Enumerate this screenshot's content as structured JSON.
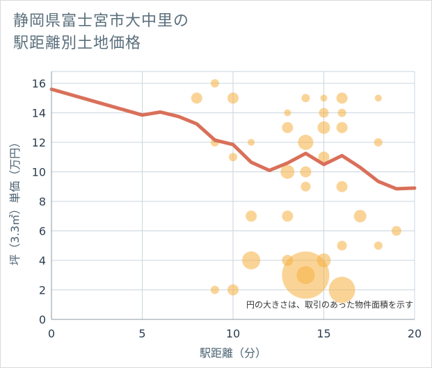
{
  "chart_data": {
    "type": "scatter",
    "title_line1": "静岡県富士宮市大中里の",
    "title_line2": "駅距離別土地価格",
    "xlabel": "駅距離（分）",
    "ylabel": "坪（3.3㎡）単価（万円）",
    "note": "円の大きさは、取引のあった物件面積を示す",
    "xlim": [
      0,
      20
    ],
    "ylim": [
      0,
      16.8
    ],
    "x_ticks": [
      0,
      5,
      10,
      15,
      20
    ],
    "y_ticks": [
      0,
      2,
      4,
      6,
      8,
      10,
      12,
      14,
      16
    ],
    "grid": true,
    "colors": {
      "line": "#d9705a",
      "bubble": "#f5b041",
      "grid": "#c8d6df",
      "axis": "#8899a6"
    },
    "line": {
      "x": [
        0,
        5,
        6,
        7,
        8,
        9,
        10,
        11,
        12,
        13,
        14,
        15,
        16,
        17,
        18,
        19,
        20
      ],
      "y": [
        15.6,
        13.85,
        14.05,
        13.75,
        13.25,
        12.15,
        11.85,
        10.65,
        10.1,
        10.6,
        11.25,
        10.5,
        11.1,
        10.3,
        9.35,
        8.85,
        8.9
      ]
    },
    "bubbles": [
      {
        "x": 9,
        "y": 16,
        "r": 6
      },
      {
        "x": 8,
        "y": 15,
        "r": 8
      },
      {
        "x": 10,
        "y": 15,
        "r": 8
      },
      {
        "x": 14,
        "y": 15,
        "r": 6
      },
      {
        "x": 15,
        "y": 15,
        "r": 5
      },
      {
        "x": 16,
        "y": 15,
        "r": 8
      },
      {
        "x": 18,
        "y": 15,
        "r": 5
      },
      {
        "x": 13,
        "y": 14,
        "r": 5
      },
      {
        "x": 15,
        "y": 14,
        "r": 7
      },
      {
        "x": 16,
        "y": 14,
        "r": 6
      },
      {
        "x": 13,
        "y": 13,
        "r": 8
      },
      {
        "x": 15,
        "y": 13,
        "r": 9
      },
      {
        "x": 16,
        "y": 13,
        "r": 8
      },
      {
        "x": 9,
        "y": 12,
        "r": 6
      },
      {
        "x": 11,
        "y": 12,
        "r": 5
      },
      {
        "x": 14,
        "y": 12,
        "r": 11
      },
      {
        "x": 18,
        "y": 12,
        "r": 6
      },
      {
        "x": 10,
        "y": 11,
        "r": 6
      },
      {
        "x": 15,
        "y": 11,
        "r": 8
      },
      {
        "x": 13,
        "y": 10,
        "r": 10
      },
      {
        "x": 14,
        "y": 10,
        "r": 8
      },
      {
        "x": 14,
        "y": 9,
        "r": 7
      },
      {
        "x": 16,
        "y": 9,
        "r": 8
      },
      {
        "x": 11,
        "y": 7,
        "r": 8
      },
      {
        "x": 13,
        "y": 7,
        "r": 8
      },
      {
        "x": 17,
        "y": 7,
        "r": 9
      },
      {
        "x": 19,
        "y": 6,
        "r": 7
      },
      {
        "x": 16,
        "y": 5,
        "r": 7
      },
      {
        "x": 18,
        "y": 5,
        "r": 6
      },
      {
        "x": 11,
        "y": 4,
        "r": 13
      },
      {
        "x": 13,
        "y": 4,
        "r": 8
      },
      {
        "x": 15,
        "y": 4,
        "r": 10
      },
      {
        "x": 14,
        "y": 3,
        "r": 34
      },
      {
        "x": 14,
        "y": 3,
        "r": 13
      },
      {
        "x": 9,
        "y": 2,
        "r": 6
      },
      {
        "x": 10,
        "y": 2,
        "r": 8
      },
      {
        "x": 16,
        "y": 2,
        "r": 19
      }
    ]
  }
}
